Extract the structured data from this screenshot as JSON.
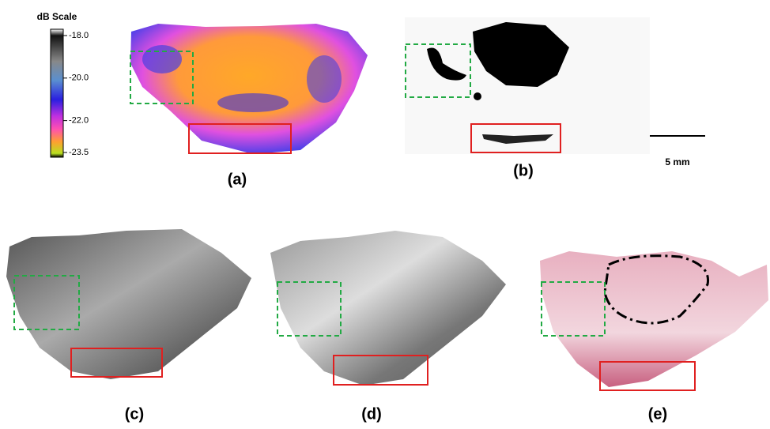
{
  "colorbar": {
    "title": "dB Scale",
    "lim": [
      -23.5,
      -18.0
    ],
    "ticks": [
      {
        "value": -18.0,
        "label": "-18.0"
      },
      {
        "value": -20.0,
        "label": "-20.0"
      },
      {
        "value": -22.0,
        "label": "-22.0"
      },
      {
        "value": -23.5,
        "label": "-23.5"
      }
    ]
  },
  "scale_bar": "5 mm",
  "panels": [
    "(a)",
    "(b)",
    "(c)",
    "(d)",
    "(e)"
  ]
}
